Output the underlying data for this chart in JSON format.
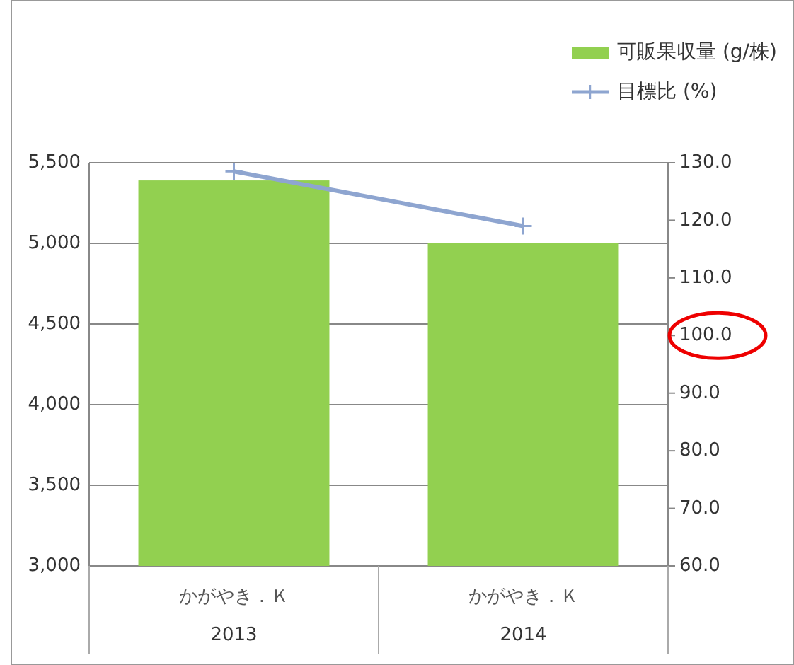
{
  "chart_data": {
    "type": "bar",
    "categories": [
      "かがやき．Ｋ",
      "かがやき．Ｋ"
    ],
    "annotations": [
      "2013",
      "2014"
    ],
    "series": [
      {
        "name": "可販果収量 (g/株)",
        "color": "#92d050",
        "values": [
          5390,
          5000
        ]
      },
      {
        "name": "目標比 (%)",
        "type": "line",
        "axis": "y2",
        "color": "#8ea5d0",
        "marker": "cross",
        "values": [
          128.5,
          119.0
        ]
      }
    ],
    "ylim": [
      3000,
      5500
    ],
    "yticks": [
      {
        "value": 3000,
        "label": "3,000"
      },
      {
        "value": 3500,
        "label": "3,500"
      },
      {
        "value": 4000,
        "label": "4,000"
      },
      {
        "value": 4500,
        "label": "4,500"
      },
      {
        "value": 5000,
        "label": "5,000"
      },
      {
        "value": 5500,
        "label": "5,500"
      }
    ],
    "y2lim": [
      60,
      130
    ],
    "y2ticks": [
      {
        "value": 60,
        "label": "60.0"
      },
      {
        "value": 70,
        "label": "70.0"
      },
      {
        "value": 80,
        "label": "80.0"
      },
      {
        "value": 90,
        "label": "90.0"
      },
      {
        "value": 100,
        "label": "100.0"
      },
      {
        "value": 110,
        "label": "110.0"
      },
      {
        "value": 120,
        "label": "120.0"
      },
      {
        "value": 130,
        "label": "130.0"
      }
    ],
    "grid": "y",
    "legend": "top right"
  }
}
